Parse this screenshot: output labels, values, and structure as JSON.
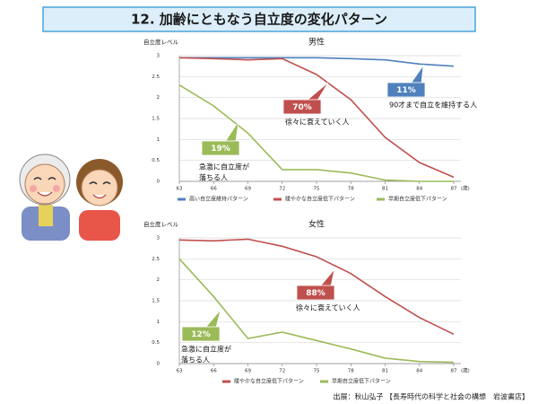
{
  "header": {
    "title": "12. 加齢にともなう自立度の変化パターン"
  },
  "chart_data": [
    {
      "type": "line",
      "title": "男性",
      "ylabel": "自立度レベル",
      "xlabel": "(歳)",
      "x": [
        63,
        66,
        69,
        72,
        75,
        78,
        81,
        84,
        87
      ],
      "xlim": [
        63,
        87
      ],
      "xticks": [
        63,
        66,
        69,
        72,
        75,
        78,
        81,
        84,
        87
      ],
      "ylim": [
        0,
        3
      ],
      "yticks": [
        0,
        0.5,
        1,
        1.5,
        2,
        2.5,
        3
      ],
      "grid": true,
      "series": [
        {
          "name": "高い自立度維持パターン",
          "color": "#4f81bd",
          "values": [
            2.95,
            2.95,
            2.95,
            2.95,
            2.95,
            2.93,
            2.9,
            2.8,
            2.75
          ]
        },
        {
          "name": "緩やかな自立度低下パターン",
          "color": "#c0504d",
          "values": [
            2.95,
            2.93,
            2.9,
            2.93,
            2.55,
            1.95,
            1.05,
            0.45,
            0.1
          ]
        },
        {
          "name": "早期自立度低下パターン",
          "color": "#9bbb59",
          "values": [
            2.3,
            1.8,
            1.15,
            0.28,
            0.28,
            0.2,
            0.03,
            0,
            0
          ]
        }
      ],
      "annotations": [
        {
          "label": "11%",
          "color": "#4f81bd",
          "note": [
            "90才まで自立を維持する人"
          ]
        },
        {
          "label": "70%",
          "color": "#c0504d",
          "note": [
            "徐々に衰えていく人"
          ]
        },
        {
          "label": "19%",
          "color": "#9bbb59",
          "note": [
            "急激に自立度が",
            "落ちる人"
          ]
        }
      ]
    },
    {
      "type": "line",
      "title": "女性",
      "ylabel": "自立度レベル",
      "xlabel": "(歳)",
      "x": [
        63,
        66,
        69,
        72,
        75,
        78,
        81,
        84,
        87
      ],
      "xlim": [
        63,
        87
      ],
      "xticks": [
        63,
        66,
        69,
        72,
        75,
        78,
        81,
        84,
        87
      ],
      "ylim": [
        0,
        3
      ],
      "yticks": [
        0,
        0.5,
        1,
        1.5,
        2,
        2.5,
        3
      ],
      "grid": true,
      "series": [
        {
          "name": "緩やかな自立度低下パターン",
          "color": "#c0504d",
          "values": [
            2.95,
            2.93,
            2.97,
            2.8,
            2.55,
            2.15,
            1.6,
            1.1,
            0.7
          ]
        },
        {
          "name": "早期自立度低下パターン",
          "color": "#9bbb59",
          "values": [
            2.5,
            1.6,
            0.6,
            0.75,
            0.55,
            0.35,
            0.13,
            0.05,
            0.03
          ]
        }
      ],
      "annotations": [
        {
          "label": "88%",
          "color": "#c0504d",
          "note": [
            "徐々に衰えていく人"
          ]
        },
        {
          "label": "12%",
          "color": "#9bbb59",
          "note": [
            "急激に自立度が",
            "落ちる人"
          ]
        }
      ]
    }
  ],
  "footer": {
    "source": "出展：秋山弘子 【長寿時代の科学と社会の構想　岩波書店】"
  }
}
